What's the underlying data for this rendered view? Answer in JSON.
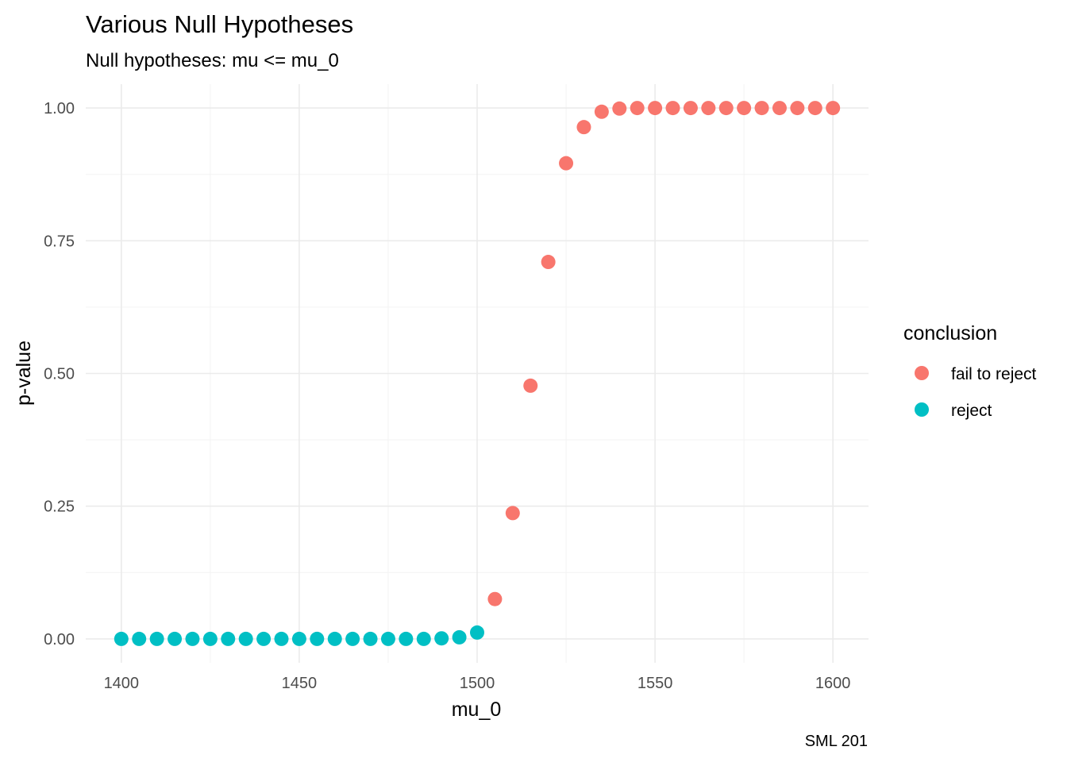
{
  "chart_data": {
    "type": "scatter",
    "title": "Various Null Hypotheses",
    "subtitle": "Null hypotheses: mu <= mu_0",
    "xlabel": "mu_0",
    "ylabel": "p-value",
    "caption": "SML 201",
    "xlim": [
      1390,
      1610
    ],
    "ylim": [
      -0.045,
      1.045
    ],
    "x_ticks": [
      1400,
      1450,
      1500,
      1550,
      1600
    ],
    "y_ticks": [
      0,
      0.25,
      0.5,
      0.75,
      1
    ],
    "x_tick_labels": [
      "1400",
      "1450",
      "1500",
      "1550",
      "1600"
    ],
    "y_tick_labels": [
      "0.00",
      "0.25",
      "0.50",
      "0.75",
      "1.00"
    ],
    "grid": true,
    "legend": {
      "title": "conclusion",
      "position": "right",
      "entries": [
        {
          "label": "fail to reject",
          "color": "#F8766D"
        },
        {
          "label": "reject",
          "color": "#00BFC4"
        }
      ]
    },
    "series": [
      {
        "name": "fail to reject",
        "color": "#F8766D",
        "points": [
          {
            "x": 1505,
            "y": 0.075
          },
          {
            "x": 1510,
            "y": 0.237
          },
          {
            "x": 1515,
            "y": 0.477
          },
          {
            "x": 1520,
            "y": 0.71
          },
          {
            "x": 1525,
            "y": 0.896
          },
          {
            "x": 1530,
            "y": 0.964
          },
          {
            "x": 1535,
            "y": 0.993
          },
          {
            "x": 1540,
            "y": 0.999
          },
          {
            "x": 1545,
            "y": 1.0
          },
          {
            "x": 1550,
            "y": 1.0
          },
          {
            "x": 1555,
            "y": 1.0
          },
          {
            "x": 1560,
            "y": 1.0
          },
          {
            "x": 1565,
            "y": 1.0
          },
          {
            "x": 1570,
            "y": 1.0
          },
          {
            "x": 1575,
            "y": 1.0
          },
          {
            "x": 1580,
            "y": 1.0
          },
          {
            "x": 1585,
            "y": 1.0
          },
          {
            "x": 1590,
            "y": 1.0
          },
          {
            "x": 1595,
            "y": 1.0
          },
          {
            "x": 1600,
            "y": 1.0
          }
        ]
      },
      {
        "name": "reject",
        "color": "#00BFC4",
        "points": [
          {
            "x": 1400,
            "y": 0.0
          },
          {
            "x": 1405,
            "y": 0.0
          },
          {
            "x": 1410,
            "y": 0.0
          },
          {
            "x": 1415,
            "y": 0.0
          },
          {
            "x": 1420,
            "y": 0.0
          },
          {
            "x": 1425,
            "y": 0.0
          },
          {
            "x": 1430,
            "y": 0.0
          },
          {
            "x": 1435,
            "y": 0.0
          },
          {
            "x": 1440,
            "y": 0.0
          },
          {
            "x": 1445,
            "y": 0.0
          },
          {
            "x": 1450,
            "y": 0.0
          },
          {
            "x": 1455,
            "y": 0.0
          },
          {
            "x": 1460,
            "y": 0.0
          },
          {
            "x": 1465,
            "y": 0.0
          },
          {
            "x": 1470,
            "y": 0.0
          },
          {
            "x": 1475,
            "y": 0.0
          },
          {
            "x": 1480,
            "y": 0.0
          },
          {
            "x": 1485,
            "y": 0.0
          },
          {
            "x": 1490,
            "y": 0.001
          },
          {
            "x": 1495,
            "y": 0.003
          },
          {
            "x": 1500,
            "y": 0.012
          }
        ]
      }
    ]
  }
}
